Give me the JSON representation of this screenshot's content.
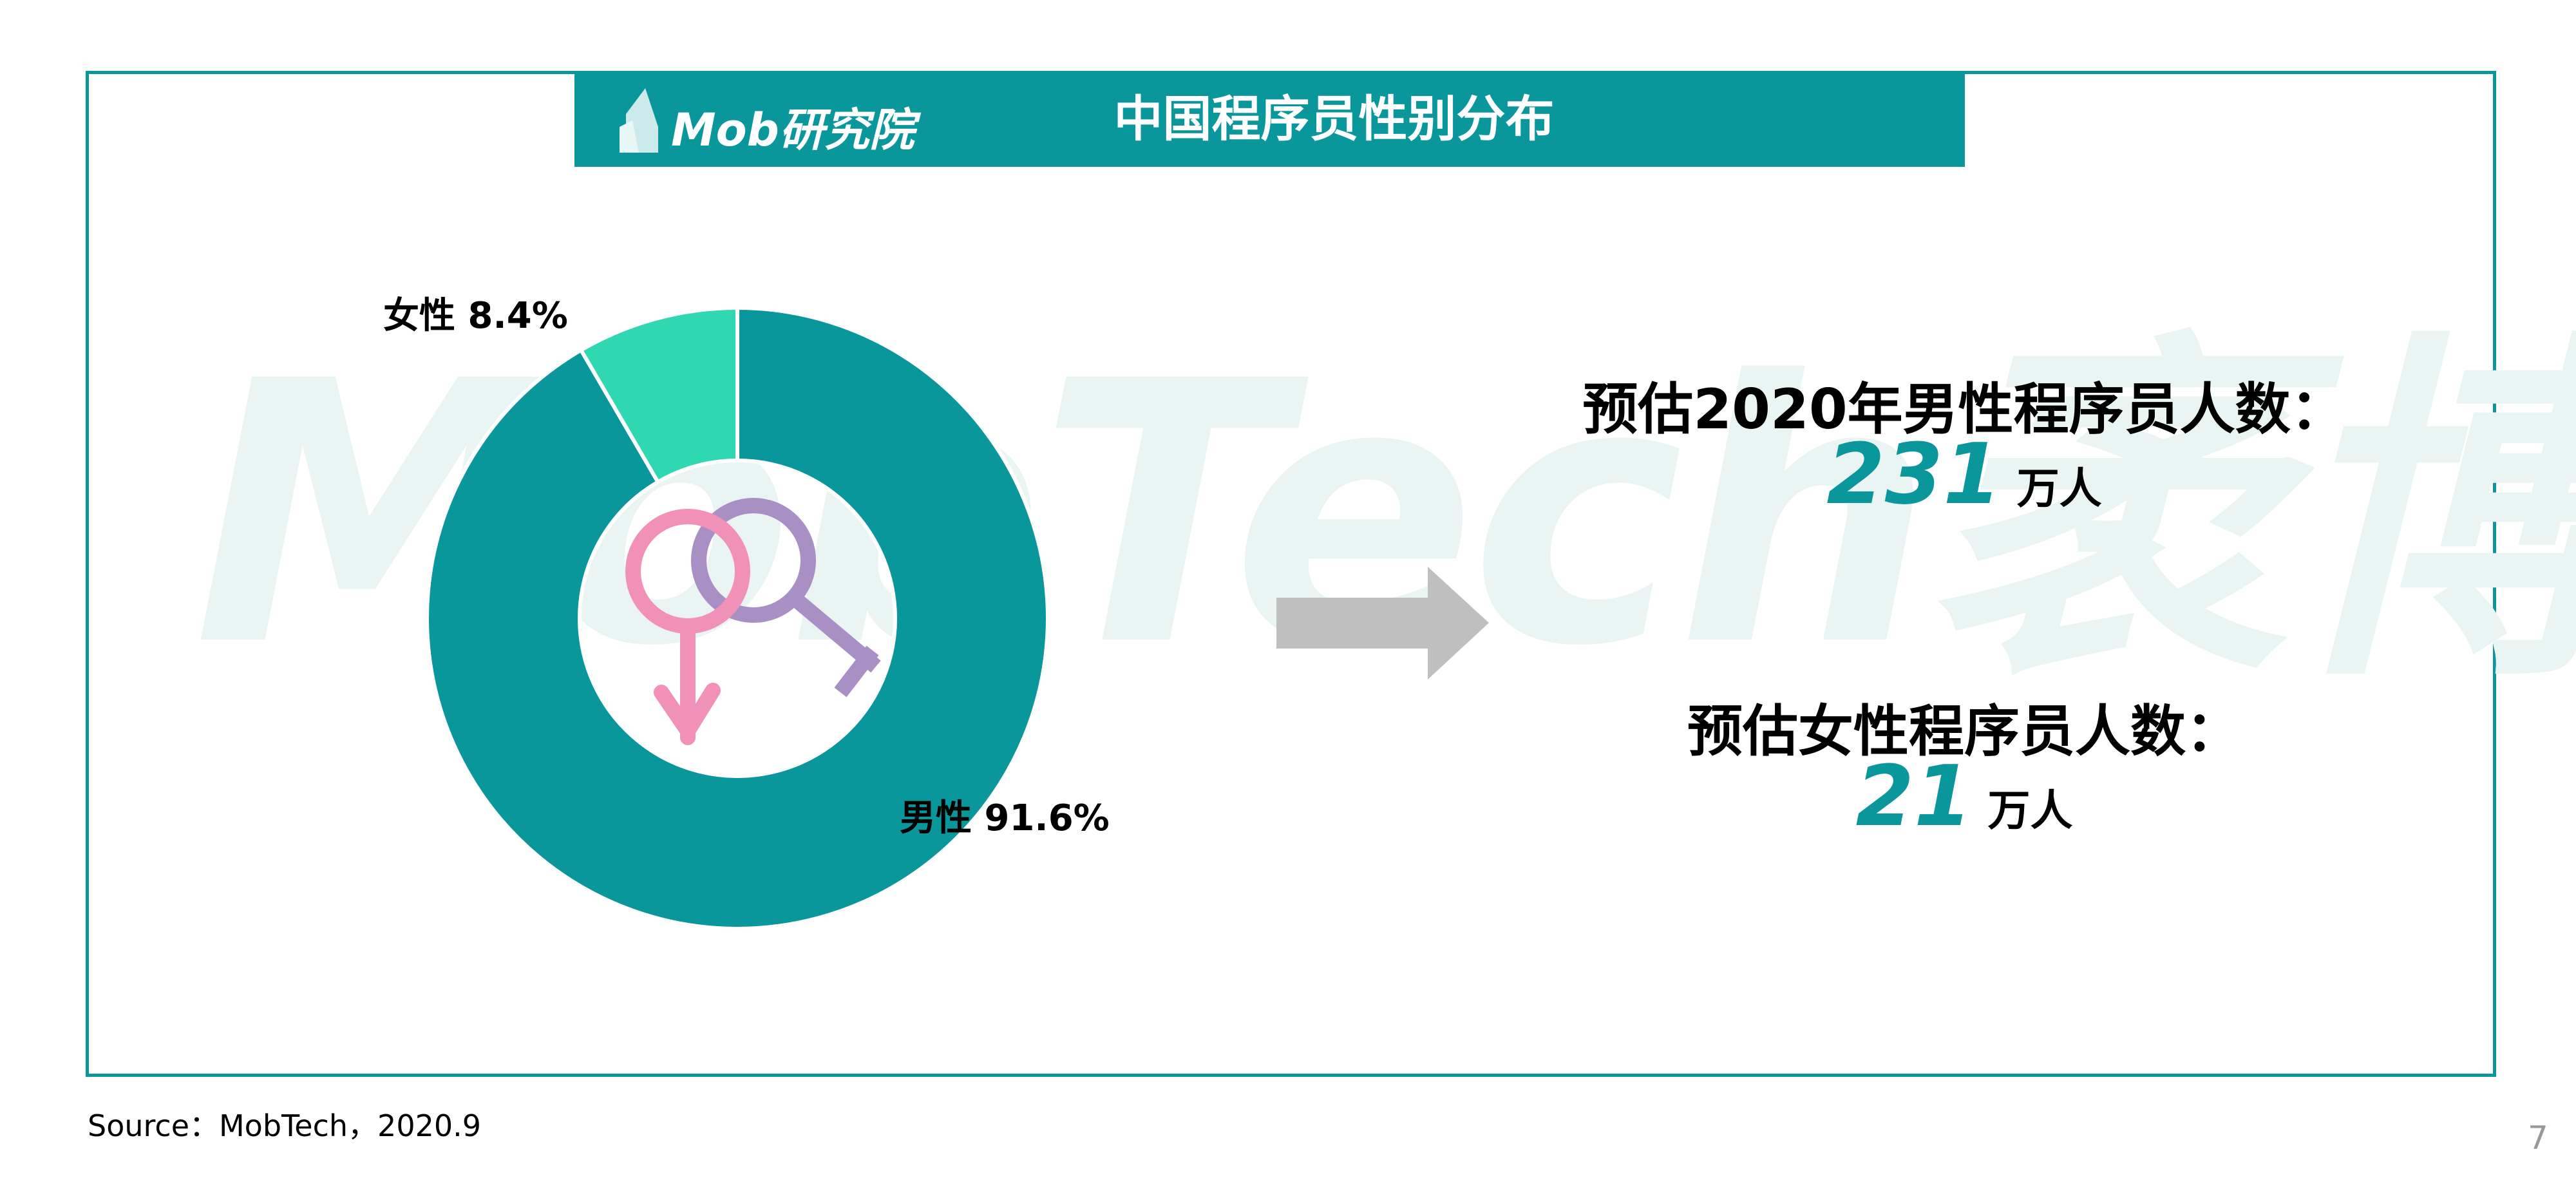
{
  "header": {
    "logo_text": "Mob研究院",
    "title": "中国程序员性别分布"
  },
  "watermark": "MobTech袤博",
  "chart_data": {
    "type": "pie",
    "variant": "donut",
    "title": "中国程序员性别分布",
    "slices": [
      {
        "label": "男性",
        "value": 91.6,
        "display": "男性 91.6%",
        "color": "#0a979c"
      },
      {
        "label": "女性",
        "value": 8.4,
        "display": "女性 8.4%",
        "color": "#2fd8b0"
      }
    ],
    "center_icons": [
      "male-symbol-icon",
      "female-symbol-icon"
    ],
    "icon_colors": {
      "male": "#f291b8",
      "female": "#a88fc4"
    }
  },
  "estimates": {
    "male_label": "预估2020年男性程序员人数：",
    "male_value": "231",
    "female_label": "预估女性程序员人数：",
    "female_value": "21",
    "unit": "万人"
  },
  "footer": {
    "source": "Source：MobTech，2020.9",
    "page_number": "7"
  },
  "colors": {
    "accent": "#0a979c",
    "arrow": "#bfbfbf"
  }
}
